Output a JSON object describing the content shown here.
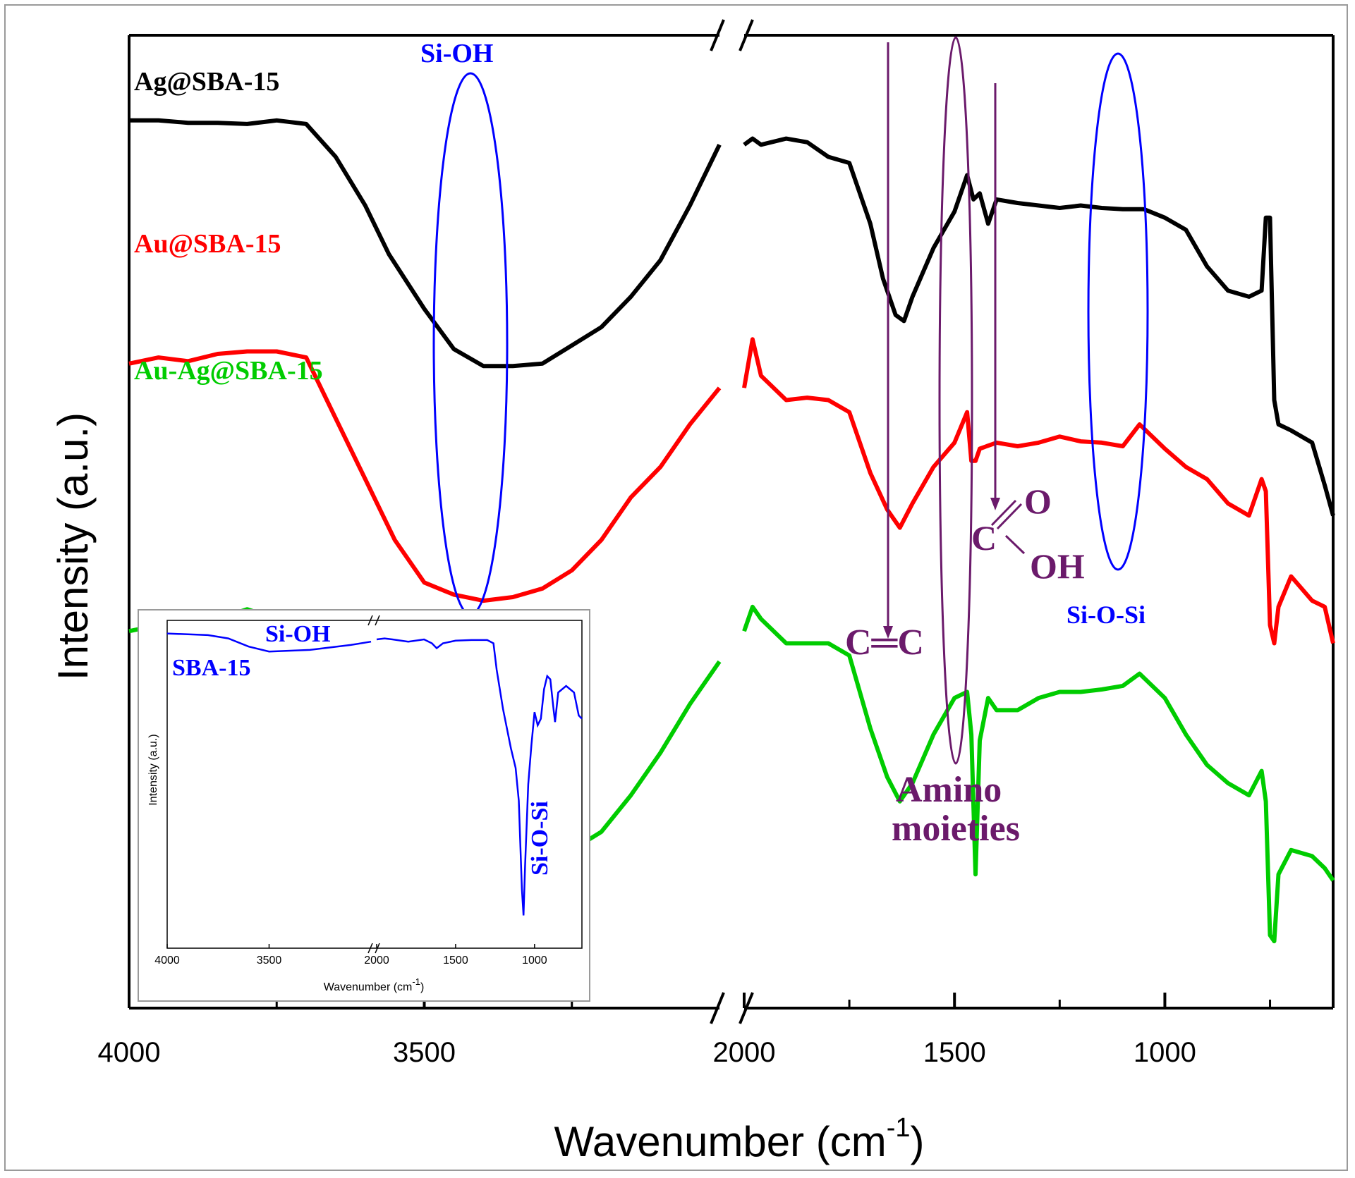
{
  "chart_data": {
    "type": "line",
    "xlabel": "Wavenumber (cm⁻¹)",
    "xlabel_main": "Wavenumber (cm",
    "xlabel_sup": "-1",
    "xlabel_close": ")",
    "ylabel": "Intensity (a.u.)",
    "x_axis_broken": true,
    "x_segments": [
      {
        "range": [
          4000,
          3000
        ]
      },
      {
        "range": [
          2000,
          600
        ]
      }
    ],
    "x_ticks": [
      {
        "value": 4000,
        "label": "4000"
      },
      {
        "value": 3500,
        "label": "3500"
      },
      {
        "value": 2000,
        "label": "2000"
      },
      {
        "value": 1500,
        "label": "1500"
      },
      {
        "value": 1000,
        "label": "1000"
      }
    ],
    "x_minor_ticks": [
      3750,
      3250,
      1750,
      1250,
      750
    ],
    "y_ticks_shown": false,
    "grid": false,
    "series": [
      {
        "name": "Ag@SBA-15",
        "color": "#000000",
        "points": [
          [
            4000,
            7.3
          ],
          [
            3950,
            7.3
          ],
          [
            3900,
            7.28
          ],
          [
            3850,
            7.28
          ],
          [
            3800,
            7.27
          ],
          [
            3750,
            7.3
          ],
          [
            3700,
            7.27
          ],
          [
            3650,
            7.0
          ],
          [
            3600,
            6.6
          ],
          [
            3560,
            6.2
          ],
          [
            3500,
            5.75
          ],
          [
            3450,
            5.42
          ],
          [
            3400,
            5.28
          ],
          [
            3350,
            5.28
          ],
          [
            3300,
            5.3
          ],
          [
            3250,
            5.45
          ],
          [
            3200,
            5.6
          ],
          [
            3150,
            5.85
          ],
          [
            3100,
            6.15
          ],
          [
            3050,
            6.6
          ],
          [
            3000,
            7.1
          ]
        ],
        "points2": [
          [
            2000,
            7.1
          ],
          [
            1980,
            7.15
          ],
          [
            1960,
            7.1
          ],
          [
            1900,
            7.15
          ],
          [
            1850,
            7.12
          ],
          [
            1800,
            7.0
          ],
          [
            1750,
            6.95
          ],
          [
            1700,
            6.45
          ],
          [
            1670,
            6.0
          ],
          [
            1640,
            5.7
          ],
          [
            1620,
            5.65
          ],
          [
            1600,
            5.85
          ],
          [
            1550,
            6.25
          ],
          [
            1500,
            6.55
          ],
          [
            1470,
            6.85
          ],
          [
            1455,
            6.65
          ],
          [
            1440,
            6.7
          ],
          [
            1420,
            6.45
          ],
          [
            1400,
            6.65
          ],
          [
            1350,
            6.62
          ],
          [
            1300,
            6.6
          ],
          [
            1250,
            6.58
          ],
          [
            1200,
            6.6
          ],
          [
            1150,
            6.58
          ],
          [
            1100,
            6.57
          ],
          [
            1050,
            6.57
          ],
          [
            1000,
            6.5
          ],
          [
            950,
            6.4
          ],
          [
            900,
            6.1
          ],
          [
            850,
            5.9
          ],
          [
            800,
            5.85
          ],
          [
            770,
            5.9
          ],
          [
            760,
            6.5
          ],
          [
            750,
            6.5
          ],
          [
            740,
            5.0
          ],
          [
            730,
            4.8
          ],
          [
            700,
            4.75
          ],
          [
            650,
            4.65
          ],
          [
            620,
            4.3
          ],
          [
            600,
            4.05
          ]
        ]
      },
      {
        "name": "Au@SBA-15",
        "color": "#ff0000",
        "points": [
          [
            4000,
            5.3
          ],
          [
            3950,
            5.35
          ],
          [
            3900,
            5.32
          ],
          [
            3850,
            5.38
          ],
          [
            3800,
            5.4
          ],
          [
            3750,
            5.4
          ],
          [
            3700,
            5.35
          ],
          [
            3650,
            4.85
          ],
          [
            3600,
            4.35
          ],
          [
            3550,
            3.85
          ],
          [
            3500,
            3.5
          ],
          [
            3450,
            3.4
          ],
          [
            3400,
            3.35
          ],
          [
            3350,
            3.38
          ],
          [
            3300,
            3.45
          ],
          [
            3250,
            3.6
          ],
          [
            3200,
            3.85
          ],
          [
            3150,
            4.2
          ],
          [
            3100,
            4.45
          ],
          [
            3050,
            4.8
          ],
          [
            3000,
            5.1
          ]
        ],
        "points2": [
          [
            2000,
            5.1
          ],
          [
            1980,
            5.5
          ],
          [
            1960,
            5.2
          ],
          [
            1900,
            5.0
          ],
          [
            1850,
            5.02
          ],
          [
            1800,
            5.0
          ],
          [
            1750,
            4.9
          ],
          [
            1700,
            4.4
          ],
          [
            1660,
            4.1
          ],
          [
            1630,
            3.95
          ],
          [
            1600,
            4.15
          ],
          [
            1550,
            4.45
          ],
          [
            1500,
            4.65
          ],
          [
            1470,
            4.9
          ],
          [
            1460,
            4.5
          ],
          [
            1450,
            4.5
          ],
          [
            1440,
            4.6
          ],
          [
            1400,
            4.65
          ],
          [
            1350,
            4.62
          ],
          [
            1300,
            4.65
          ],
          [
            1250,
            4.7
          ],
          [
            1200,
            4.66
          ],
          [
            1150,
            4.65
          ],
          [
            1100,
            4.62
          ],
          [
            1060,
            4.8
          ],
          [
            1000,
            4.6
          ],
          [
            950,
            4.45
          ],
          [
            900,
            4.35
          ],
          [
            850,
            4.15
          ],
          [
            800,
            4.05
          ],
          [
            770,
            4.35
          ],
          [
            760,
            4.25
          ],
          [
            750,
            3.15
          ],
          [
            740,
            3.0
          ],
          [
            730,
            3.3
          ],
          [
            700,
            3.55
          ],
          [
            650,
            3.35
          ],
          [
            620,
            3.3
          ],
          [
            600,
            3.0
          ]
        ]
      },
      {
        "name": "Au-Ag@SBA-15",
        "color": "#00cc00",
        "points": [
          [
            4000,
            3.1
          ],
          [
            3950,
            3.15
          ],
          [
            3900,
            3.15
          ],
          [
            3850,
            3.2
          ],
          [
            3800,
            3.28
          ],
          [
            3750,
            3.2
          ],
          [
            3700,
            3.25
          ],
          [
            3650,
            3.0
          ],
          [
            3600,
            2.55
          ],
          [
            3550,
            2.1
          ],
          [
            3500,
            1.55
          ],
          [
            3450,
            1.2
          ],
          [
            3400,
            1.05
          ],
          [
            3350,
            1.05
          ],
          [
            3300,
            1.15
          ],
          [
            3250,
            1.3
          ],
          [
            3200,
            1.45
          ],
          [
            3150,
            1.75
          ],
          [
            3100,
            2.1
          ],
          [
            3050,
            2.5
          ],
          [
            3000,
            2.85
          ]
        ],
        "points2": [
          [
            2000,
            3.1
          ],
          [
            1980,
            3.3
          ],
          [
            1960,
            3.2
          ],
          [
            1900,
            3.0
          ],
          [
            1850,
            3.0
          ],
          [
            1800,
            3.0
          ],
          [
            1750,
            2.9
          ],
          [
            1700,
            2.3
          ],
          [
            1660,
            1.9
          ],
          [
            1630,
            1.7
          ],
          [
            1600,
            1.85
          ],
          [
            1550,
            2.25
          ],
          [
            1500,
            2.55
          ],
          [
            1470,
            2.6
          ],
          [
            1460,
            2.25
          ],
          [
            1450,
            1.1
          ],
          [
            1440,
            2.2
          ],
          [
            1420,
            2.55
          ],
          [
            1400,
            2.45
          ],
          [
            1350,
            2.45
          ],
          [
            1300,
            2.55
          ],
          [
            1250,
            2.6
          ],
          [
            1200,
            2.6
          ],
          [
            1150,
            2.62
          ],
          [
            1100,
            2.65
          ],
          [
            1060,
            2.75
          ],
          [
            1000,
            2.55
          ],
          [
            950,
            2.25
          ],
          [
            900,
            2.0
          ],
          [
            850,
            1.85
          ],
          [
            800,
            1.75
          ],
          [
            770,
            1.95
          ],
          [
            760,
            1.7
          ],
          [
            750,
            0.6
          ],
          [
            740,
            0.55
          ],
          [
            730,
            1.1
          ],
          [
            700,
            1.3
          ],
          [
            650,
            1.25
          ],
          [
            620,
            1.15
          ],
          [
            600,
            1.05
          ]
        ]
      }
    ],
    "annotations": {
      "si_oh": "Si-OH",
      "si_o_si": "Si-O-Si",
      "cc": "C═C",
      "amino_1": "Amino",
      "amino_2": "moieties",
      "cooh_c": "C",
      "cooh_o": "O",
      "cooh_oh": "OH"
    },
    "inset": {
      "series_name": "SBA-15",
      "color": "#0000ff",
      "xlabel": "Wavenumber (cm",
      "xlabel_sup": "-1",
      "xlabel_close": ")",
      "ylabel": "Intensity (a.u.)",
      "x_ticks": [
        {
          "value": 4000,
          "label": "4000"
        },
        {
          "value": 3500,
          "label": "3500"
        },
        {
          "value": 2000,
          "label": "2000"
        },
        {
          "value": 1500,
          "label": "1500"
        },
        {
          "value": 1000,
          "label": "1000"
        }
      ],
      "si_oh": "Si-OH",
      "si_o_si": "Si-O-Si",
      "points": [
        [
          4000,
          9.6
        ],
        [
          3800,
          9.55
        ],
        [
          3700,
          9.45
        ],
        [
          3600,
          9.2
        ],
        [
          3500,
          9.05
        ],
        [
          3300,
          9.1
        ],
        [
          3100,
          9.25
        ],
        [
          3000,
          9.35
        ]
      ],
      "points2": [
        [
          2000,
          9.42
        ],
        [
          1950,
          9.45
        ],
        [
          1900,
          9.42
        ],
        [
          1800,
          9.35
        ],
        [
          1700,
          9.42
        ],
        [
          1650,
          9.3
        ],
        [
          1620,
          9.15
        ],
        [
          1580,
          9.3
        ],
        [
          1500,
          9.38
        ],
        [
          1400,
          9.4
        ],
        [
          1300,
          9.4
        ],
        [
          1260,
          9.3
        ],
        [
          1240,
          8.5
        ],
        [
          1200,
          7.3
        ],
        [
          1150,
          6.1
        ],
        [
          1120,
          5.5
        ],
        [
          1100,
          4.5
        ],
        [
          1080,
          1.8
        ],
        [
          1070,
          1.0
        ],
        [
          1060,
          2.5
        ],
        [
          1040,
          5.0
        ],
        [
          1020,
          6.2
        ],
        [
          1000,
          7.2
        ],
        [
          980,
          6.8
        ],
        [
          960,
          7.0
        ],
        [
          940,
          7.9
        ],
        [
          920,
          8.3
        ],
        [
          900,
          8.2
        ],
        [
          880,
          7.3
        ],
        [
          870,
          6.9
        ],
        [
          850,
          7.8
        ],
        [
          800,
          8.0
        ],
        [
          750,
          7.8
        ],
        [
          720,
          7.1
        ],
        [
          700,
          7.0
        ]
      ]
    }
  }
}
